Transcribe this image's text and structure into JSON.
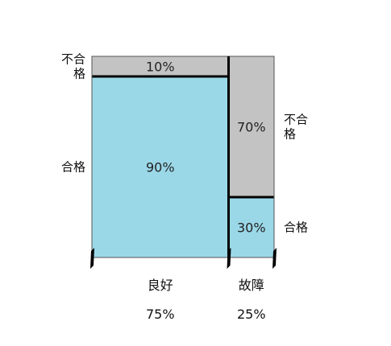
{
  "chart_data": {
    "type": "mosaic",
    "columns": [
      {
        "name": "良好",
        "share_label": "75%",
        "share": 0.75,
        "segments": [
          {
            "name": "不合格",
            "side_lines": [
              "不合",
              "格"
            ],
            "value": 0.1,
            "label": "10%"
          },
          {
            "name": "合格",
            "side_lines": [
              "合格"
            ],
            "value": 0.9,
            "label": "90%"
          }
        ]
      },
      {
        "name": "故障",
        "share_label": "25%",
        "share": 0.25,
        "segments": [
          {
            "name": "不合格",
            "side_lines": [
              "不合",
              "格"
            ],
            "value": 0.7,
            "label": "70%"
          },
          {
            "name": "合格",
            "side_lines": [
              "合格"
            ],
            "value": 0.3,
            "label": "30%"
          }
        ]
      }
    ],
    "colors": {
      "不合格": "#c3c3c3",
      "合格": "#9ad8e8",
      "outline": "#000000",
      "tick": "#000000"
    }
  }
}
